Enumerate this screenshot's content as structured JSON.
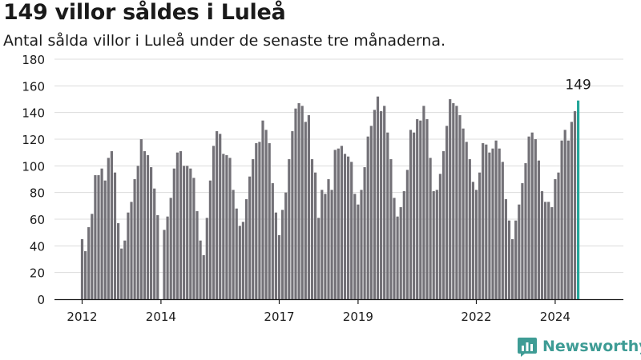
{
  "title": "149 villor såldes i Luleå",
  "subtitle": "Antal sålda villor i Luleå under de senaste tre månaderna.",
  "brand": {
    "name": "Newsworthy",
    "icon": "newsworthy-logo-icon"
  },
  "colors": {
    "bar": "#737177",
    "highlight": "#26a69a",
    "grid": "#dcdcdc",
    "text": "#1a1a1a",
    "brand": "#3e9c95"
  },
  "chart_data": {
    "type": "bar",
    "title": "149 villor såldes i Luleå",
    "subtitle": "Antal sålda villor i Luleå under de senaste tre månaderna.",
    "xlabel": "",
    "ylabel": "",
    "ylim": [
      0,
      180
    ],
    "y_ticks": [
      0,
      20,
      40,
      60,
      80,
      100,
      120,
      140,
      160,
      180
    ],
    "x_tick_labels": [
      "2012",
      "2014",
      "2017",
      "2019",
      "2022",
      "2024"
    ],
    "x_tick_periods": [
      "2012-01",
      "2014-01",
      "2017-01",
      "2019-01",
      "2022-01",
      "2024-01"
    ],
    "grid": true,
    "start_period": "2012-01",
    "highlight_label": "149",
    "values": [
      45,
      36,
      54,
      64,
      93,
      93,
      98,
      89,
      106,
      111,
      95,
      57,
      38,
      44,
      65,
      73,
      90,
      100,
      120,
      111,
      108,
      99,
      83,
      63,
      0,
      52,
      62,
      76,
      98,
      110,
      111,
      100,
      100,
      98,
      91,
      66,
      44,
      33,
      61,
      89,
      115,
      126,
      124,
      109,
      108,
      106,
      82,
      68,
      55,
      58,
      75,
      92,
      105,
      117,
      118,
      134,
      127,
      117,
      87,
      65,
      48,
      67,
      80,
      105,
      126,
      143,
      147,
      145,
      133,
      138,
      105,
      95,
      61,
      82,
      79,
      90,
      82,
      112,
      113,
      115,
      109,
      107,
      103,
      79,
      71,
      82,
      99,
      122,
      130,
      142,
      152,
      141,
      145,
      125,
      105,
      76,
      62,
      69,
      81,
      97,
      127,
      125,
      135,
      134,
      145,
      135,
      106,
      81,
      82,
      94,
      111,
      130,
      150,
      147,
      145,
      138,
      128,
      118,
      105,
      88,
      82,
      95,
      117,
      116,
      110,
      113,
      119,
      113,
      103,
      75,
      59,
      45,
      59,
      71,
      87,
      102,
      122,
      125,
      120,
      104,
      81,
      73,
      73,
      69,
      90,
      95,
      119,
      127,
      119,
      133,
      141,
      149
    ]
  }
}
